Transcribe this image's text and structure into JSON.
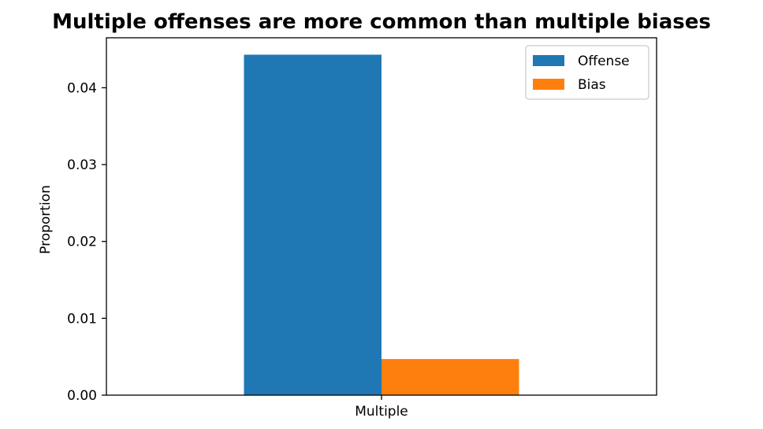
{
  "chart_data": {
    "type": "bar",
    "title": "Multiple offenses are more common than multiple biases",
    "xlabel": "",
    "ylabel": "Proportion",
    "categories": [
      "Multiple"
    ],
    "series": [
      {
        "name": "Offense",
        "values": [
          0.0443
        ],
        "color": "#1f77b4"
      },
      {
        "name": "Bias",
        "values": [
          0.0047
        ],
        "color": "#ff7f0e"
      }
    ],
    "ylim": [
      0,
      0.0465
    ],
    "yticks": [
      "0.00",
      "0.01",
      "0.02",
      "0.03",
      "0.04"
    ],
    "legend_position": "top-right",
    "grid": false
  }
}
